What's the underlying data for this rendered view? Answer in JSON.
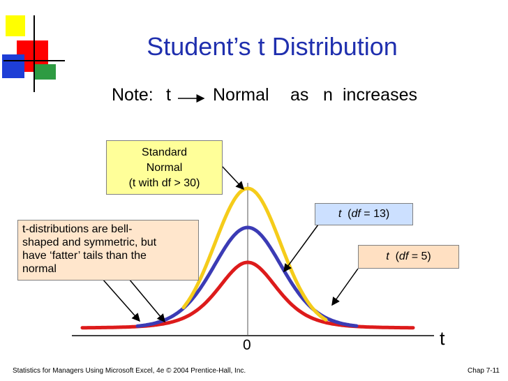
{
  "title": "Student’s t Distribution",
  "note": {
    "prefix": "Note:",
    "t": "t",
    "normal": "Normal",
    "as": "as",
    "n": "n",
    "increases": "increases"
  },
  "callouts": {
    "standard_normal": [
      "Standard",
      "Normal",
      "(t with df > 30)"
    ],
    "t13": {
      "t": "t",
      "open": "(",
      "df": "df",
      "rest": " = 13)"
    },
    "t5": {
      "t": "t",
      "open": "(",
      "df": "df",
      "rest": " = 5)"
    },
    "bell": [
      "t-distributions are bell-",
      "shaped and symmetric, but",
      "have ‘fatter’ tails than the",
      "normal"
    ]
  },
  "axis": {
    "zero_label": "0",
    "t_label": "t"
  },
  "footer": {
    "left": "Statistics for Managers Using Microsoft Excel, 4e © 2004 Prentice-Hall, Inc.",
    "right": "Chap 7-11"
  },
  "colors": {
    "title": "#1f2fae",
    "normal_curve": "#f5cc1a",
    "t13_curve": "#3b3bb5",
    "t5_curve": "#dd1b1b",
    "std_box": "#ffff99",
    "t13_box": "#cce0ff",
    "t5_box": "#ffe0c2",
    "bell_box": "#ffe6cc"
  },
  "curves": [
    {
      "id": "normal",
      "df": "inf"
    },
    {
      "id": "t13",
      "df": 13
    },
    {
      "id": "t5",
      "df": 5
    }
  ]
}
